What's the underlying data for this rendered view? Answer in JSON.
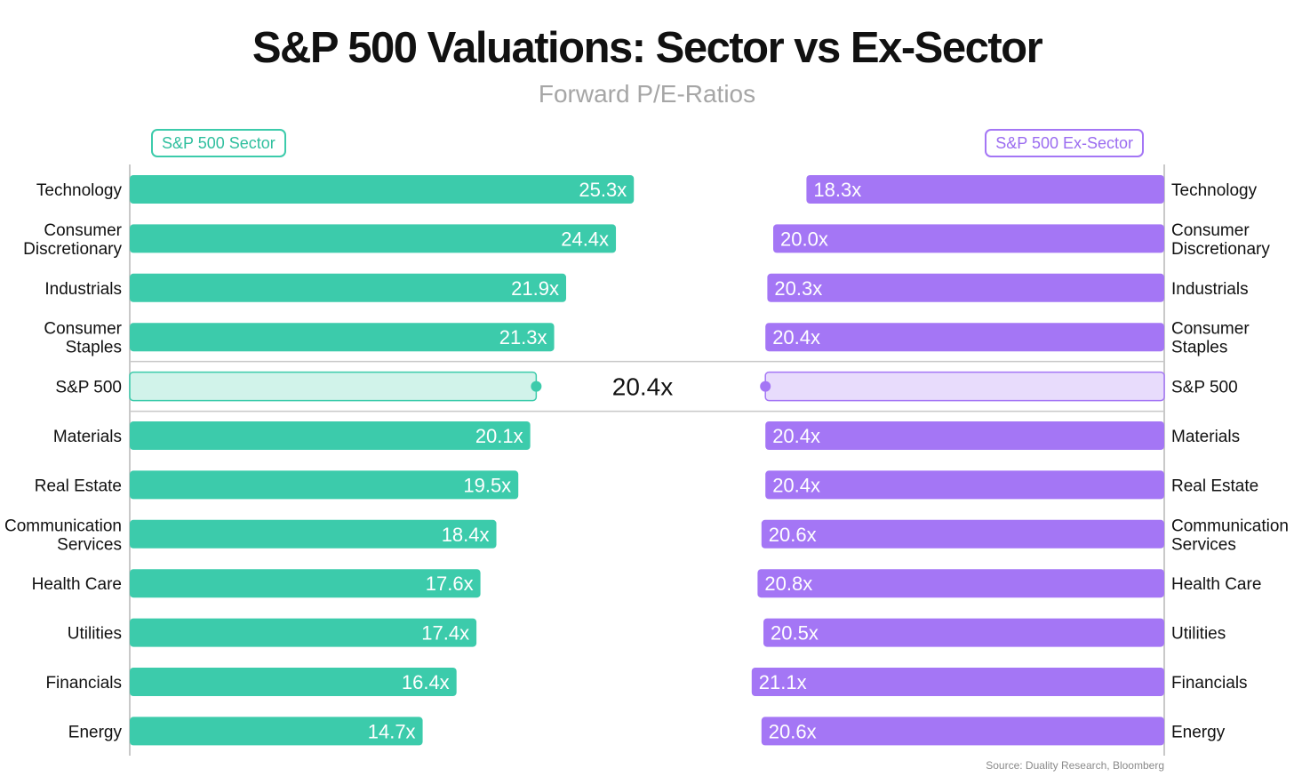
{
  "title": "S&P 500 Valuations: Sector vs Ex-Sector",
  "subtitle": "Forward P/E-Ratios",
  "source": "Source: Duality Research, Bloomberg",
  "colors": {
    "sector": "#3ccbab",
    "ex_sector": "#a476f5",
    "sector_light": "#d1f3ea",
    "ex_sector_light": "#e8dcfc",
    "text": "#111111"
  },
  "chart_data": {
    "type": "bar",
    "title": "S&P 500 Valuations: Sector vs Ex-Sector",
    "subtitle": "Forward P/E-Ratios",
    "legend": [
      "S&P 500 Sector",
      "S&P 500 Ex-Sector"
    ],
    "categories": [
      {
        "label": [
          "Technology"
        ],
        "sector": 25.3,
        "ex_sector": 18.3,
        "sector_label": "25.3x",
        "ex_sector_label": "18.3x"
      },
      {
        "label": [
          "Consumer",
          "Discretionary"
        ],
        "sector": 24.4,
        "ex_sector": 20.0,
        "sector_label": "24.4x",
        "ex_sector_label": "20.0x"
      },
      {
        "label": [
          "Industrials"
        ],
        "sector": 21.9,
        "ex_sector": 20.3,
        "sector_label": "21.9x",
        "ex_sector_label": "20.3x"
      },
      {
        "label": [
          "Consumer",
          "Staples"
        ],
        "sector": 21.3,
        "ex_sector": 20.4,
        "sector_label": "21.3x",
        "ex_sector_label": "20.4x"
      },
      {
        "label": [
          "S&P 500"
        ],
        "sector": 20.4,
        "ex_sector": 20.4,
        "benchmark": true,
        "benchmark_label": "20.4x"
      },
      {
        "label": [
          "Materials"
        ],
        "sector": 20.1,
        "ex_sector": 20.4,
        "sector_label": "20.1x",
        "ex_sector_label": "20.4x"
      },
      {
        "label": [
          "Real Estate"
        ],
        "sector": 19.5,
        "ex_sector": 20.4,
        "sector_label": "19.5x",
        "ex_sector_label": "20.4x"
      },
      {
        "label": [
          "Communication",
          "Services"
        ],
        "sector": 18.4,
        "ex_sector": 20.6,
        "sector_label": "18.4x",
        "ex_sector_label": "20.6x"
      },
      {
        "label": [
          "Health Care"
        ],
        "sector": 17.6,
        "ex_sector": 20.8,
        "sector_label": "17.6x",
        "ex_sector_label": "20.8x"
      },
      {
        "label": [
          "Utilities"
        ],
        "sector": 17.4,
        "ex_sector": 20.5,
        "sector_label": "17.4x",
        "ex_sector_label": "20.5x"
      },
      {
        "label": [
          "Financials"
        ],
        "sector": 16.4,
        "ex_sector": 21.1,
        "sector_label": "16.4x",
        "ex_sector_label": "21.1x"
      },
      {
        "label": [
          "Energy"
        ],
        "sector": 14.7,
        "ex_sector": 20.6,
        "sector_label": "14.7x",
        "ex_sector_label": "20.6x"
      }
    ]
  }
}
